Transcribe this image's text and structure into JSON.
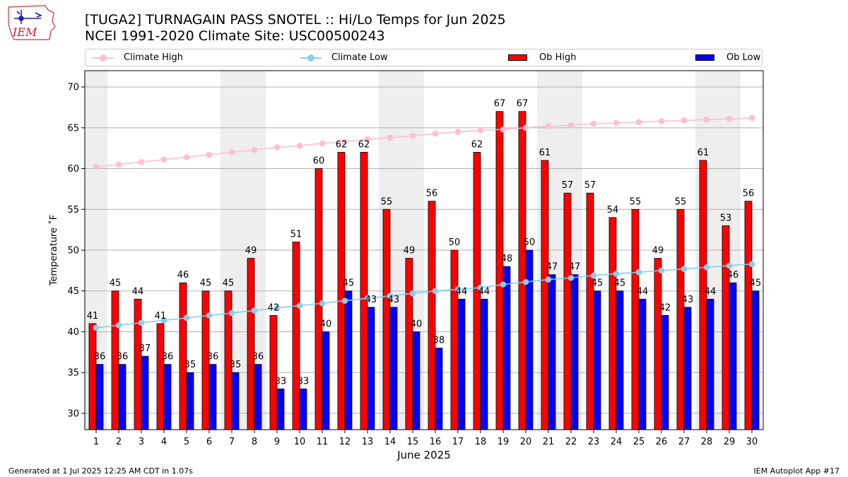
{
  "header": {
    "logo_text": "IEM",
    "title_line1": "[TUGA2] TURNAGAIN PASS SNOTEL :: Hi/Lo Temps for Jun 2025",
    "title_line2": "NCEI 1991-2020 Climate Site: USC00500243"
  },
  "footer": {
    "generated": "Generated at 1 Jul 2025 12:25 AM CDT in 1.07s",
    "app": "IEM Autoplot App #17"
  },
  "colors": {
    "climate_high": "#ffc0cb",
    "climate_low": "#87ceeb",
    "ob_high": "#ff0000",
    "ob_low": "#0000ff",
    "weekend_band": "#eeeeee"
  },
  "chart_data": {
    "type": "bar",
    "xlabel": "June 2025",
    "ylabel": "Temperature $^\\circ$F",
    "ylabel_display": "Temperature ˚F",
    "ylim": [
      28,
      72
    ],
    "yticks": [
      30,
      35,
      40,
      45,
      50,
      55,
      60,
      65,
      70
    ],
    "grid": true,
    "legend": [
      "Climate High",
      "Climate Low",
      "Ob High",
      "Ob Low"
    ],
    "legend_position": "top",
    "shaded_days": [
      1,
      7,
      8,
      14,
      15,
      21,
      22,
      28,
      29
    ],
    "categories": [
      1,
      2,
      3,
      4,
      5,
      6,
      7,
      8,
      9,
      10,
      11,
      12,
      13,
      14,
      15,
      16,
      17,
      18,
      19,
      20,
      21,
      22,
      23,
      24,
      25,
      26,
      27,
      28,
      29,
      30
    ],
    "series": [
      {
        "name": "Ob High",
        "type": "bar",
        "values": [
          41,
          45,
          44,
          41,
          46,
          45,
          45,
          49,
          42,
          51,
          60,
          62,
          62,
          55,
          49,
          56,
          50,
          62,
          67,
          67,
          61,
          57,
          57,
          54,
          55,
          49,
          55,
          61,
          53,
          56
        ]
      },
      {
        "name": "Ob Low",
        "type": "bar",
        "values": [
          36,
          36,
          37,
          36,
          35,
          36,
          35,
          36,
          33,
          33,
          40,
          45,
          43,
          43,
          40,
          38,
          44,
          44,
          48,
          50,
          47,
          47,
          45,
          45,
          44,
          42,
          43,
          44,
          46,
          45
        ]
      },
      {
        "name": "Climate High",
        "type": "line",
        "values": [
          60.2,
          60.5,
          60.8,
          61.1,
          61.4,
          61.7,
          62.0,
          62.3,
          62.6,
          62.8,
          63.1,
          63.3,
          63.6,
          63.8,
          64.0,
          64.3,
          64.5,
          64.7,
          64.8,
          65.0,
          65.2,
          65.3,
          65.5,
          65.6,
          65.7,
          65.8,
          65.9,
          66.0,
          66.1,
          66.2
        ]
      },
      {
        "name": "Climate Low",
        "type": "line",
        "values": [
          40.5,
          40.8,
          41.1,
          41.4,
          41.7,
          42.0,
          42.3,
          42.6,
          42.9,
          43.2,
          43.5,
          43.8,
          44.1,
          44.4,
          44.7,
          45.0,
          45.2,
          45.4,
          45.8,
          46.1,
          46.4,
          46.6,
          46.9,
          47.1,
          47.3,
          47.5,
          47.7,
          47.9,
          48.1,
          48.3
        ]
      }
    ]
  }
}
